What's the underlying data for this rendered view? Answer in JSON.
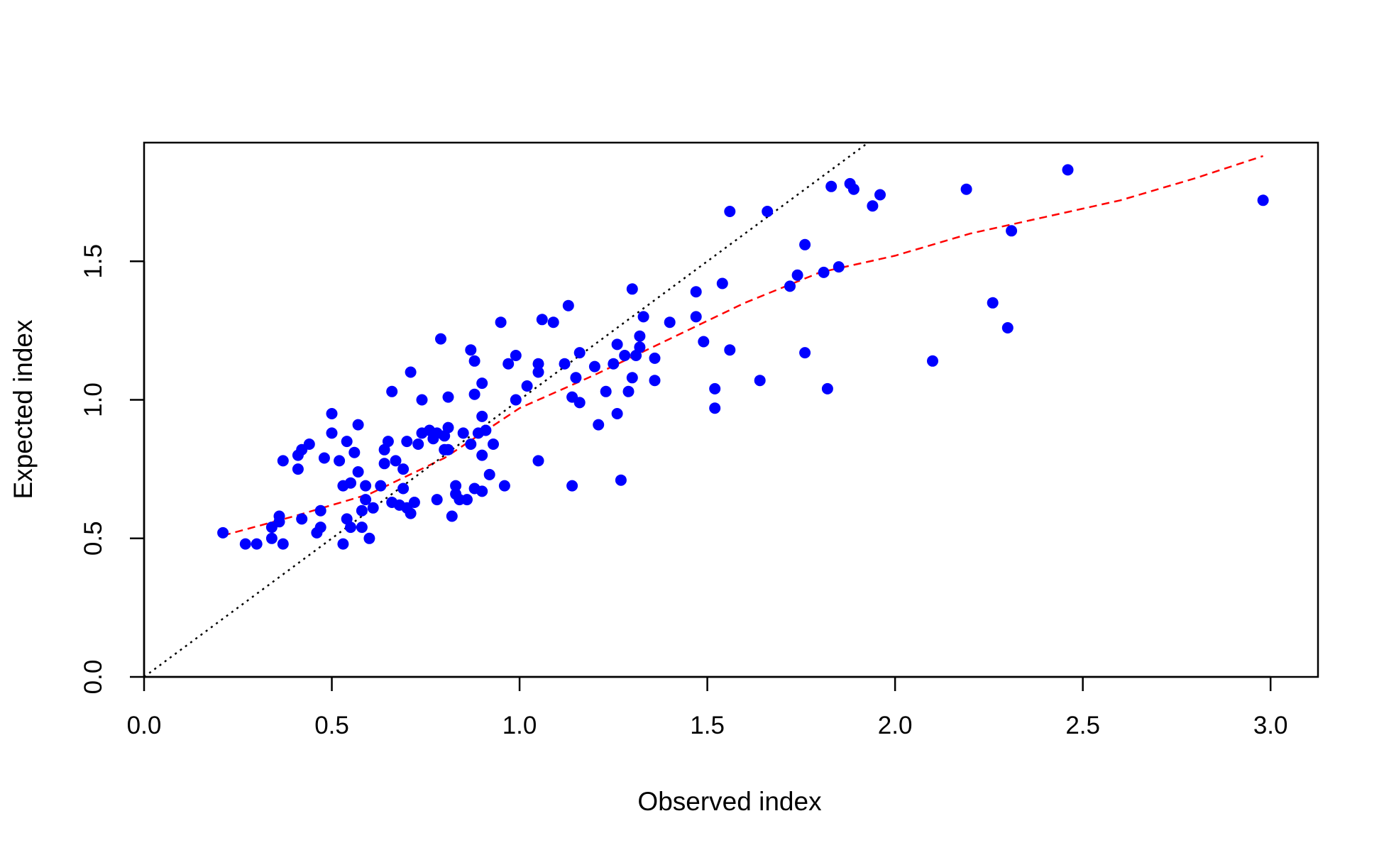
{
  "chart_data": {
    "type": "scatter",
    "title": "",
    "xlabel": "Observed index",
    "ylabel": "Expected index",
    "xlim": [
      0.0,
      3.1263
    ],
    "ylim": [
      0.0,
      1.9283
    ],
    "x_ticks": [
      "0.0",
      "0.5",
      "1.0",
      "1.5",
      "2.0",
      "2.5",
      "3.0"
    ],
    "y_ticks": [
      "0.0",
      "0.5",
      "1.0",
      "1.5"
    ],
    "grid": false,
    "colors": {
      "points": "#0000ff",
      "fit_line": "#ff0000",
      "identity_line": "#000000",
      "axes": "#000000"
    },
    "series": [
      {
        "kind": "points",
        "points": [
          [
            0.21,
            0.52
          ],
          [
            0.27,
            0.48
          ],
          [
            0.3,
            0.48
          ],
          [
            0.34,
            0.54
          ],
          [
            0.34,
            0.5
          ],
          [
            0.36,
            0.58
          ],
          [
            0.36,
            0.56
          ],
          [
            0.37,
            0.48
          ],
          [
            0.37,
            0.78
          ],
          [
            0.41,
            0.8
          ],
          [
            0.41,
            0.75
          ],
          [
            0.42,
            0.82
          ],
          [
            0.42,
            0.57
          ],
          [
            0.44,
            0.84
          ],
          [
            0.46,
            0.52
          ],
          [
            0.47,
            0.6
          ],
          [
            0.47,
            0.54
          ],
          [
            0.48,
            0.79
          ],
          [
            0.5,
            0.95
          ],
          [
            0.5,
            0.88
          ],
          [
            0.52,
            0.78
          ],
          [
            0.53,
            0.69
          ],
          [
            0.53,
            0.48
          ],
          [
            0.54,
            0.85
          ],
          [
            0.54,
            0.57
          ],
          [
            0.55,
            0.7
          ],
          [
            0.55,
            0.54
          ],
          [
            0.56,
            0.81
          ],
          [
            0.57,
            0.74
          ],
          [
            0.57,
            0.91
          ],
          [
            0.58,
            0.6
          ],
          [
            0.58,
            0.54
          ],
          [
            0.59,
            0.69
          ],
          [
            0.59,
            0.64
          ],
          [
            0.6,
            0.5
          ],
          [
            0.61,
            0.61
          ],
          [
            0.63,
            0.69
          ],
          [
            0.64,
            0.82
          ],
          [
            0.64,
            0.77
          ],
          [
            0.65,
            0.85
          ],
          [
            0.66,
            1.03
          ],
          [
            0.66,
            0.63
          ],
          [
            0.67,
            0.78
          ],
          [
            0.68,
            0.62
          ],
          [
            0.69,
            0.75
          ],
          [
            0.69,
            0.68
          ],
          [
            0.7,
            0.85
          ],
          [
            0.7,
            0.61
          ],
          [
            0.71,
            1.1
          ],
          [
            0.71,
            0.59
          ],
          [
            0.72,
            0.63
          ],
          [
            0.73,
            0.84
          ],
          [
            0.74,
            1.0
          ],
          [
            0.74,
            0.88
          ],
          [
            0.76,
            0.89
          ],
          [
            0.77,
            0.86
          ],
          [
            0.78,
            0.88
          ],
          [
            0.78,
            0.64
          ],
          [
            0.79,
            1.22
          ],
          [
            0.8,
            0.87
          ],
          [
            0.8,
            0.82
          ],
          [
            0.81,
            0.9
          ],
          [
            0.81,
            1.01
          ],
          [
            0.81,
            0.82
          ],
          [
            0.82,
            0.58
          ],
          [
            0.83,
            0.66
          ],
          [
            0.83,
            0.69
          ],
          [
            0.84,
            0.64
          ],
          [
            0.85,
            0.88
          ],
          [
            0.86,
            0.64
          ],
          [
            0.87,
            1.18
          ],
          [
            0.87,
            0.84
          ],
          [
            0.88,
            1.14
          ],
          [
            0.88,
            0.68
          ],
          [
            0.88,
            1.02
          ],
          [
            0.89,
            0.88
          ],
          [
            0.9,
            1.06
          ],
          [
            0.9,
            0.94
          ],
          [
            0.9,
            0.8
          ],
          [
            0.9,
            0.67
          ],
          [
            0.91,
            0.89
          ],
          [
            0.92,
            0.73
          ],
          [
            0.93,
            0.84
          ],
          [
            0.95,
            1.28
          ],
          [
            0.96,
            0.69
          ],
          [
            0.97,
            1.13
          ],
          [
            0.99,
            1.16
          ],
          [
            0.99,
            1.0
          ],
          [
            1.02,
            1.05
          ],
          [
            1.05,
            1.13
          ],
          [
            1.05,
            1.1
          ],
          [
            1.05,
            0.78
          ],
          [
            1.06,
            1.29
          ],
          [
            1.09,
            1.28
          ],
          [
            1.12,
            1.13
          ],
          [
            1.13,
            1.34
          ],
          [
            1.14,
            1.01
          ],
          [
            1.14,
            0.69
          ],
          [
            1.15,
            1.08
          ],
          [
            1.16,
            1.17
          ],
          [
            1.16,
            0.99
          ],
          [
            1.2,
            1.12
          ],
          [
            1.21,
            0.91
          ],
          [
            1.23,
            1.03
          ],
          [
            1.25,
            1.13
          ],
          [
            1.26,
            1.2
          ],
          [
            1.26,
            0.95
          ],
          [
            1.27,
            0.71
          ],
          [
            1.28,
            1.16
          ],
          [
            1.29,
            1.03
          ],
          [
            1.3,
            1.08
          ],
          [
            1.3,
            1.4
          ],
          [
            1.31,
            1.16
          ],
          [
            1.32,
            1.19
          ],
          [
            1.32,
            1.23
          ],
          [
            1.33,
            1.3
          ],
          [
            1.36,
            1.15
          ],
          [
            1.36,
            1.07
          ],
          [
            1.4,
            1.28
          ],
          [
            1.47,
            1.39
          ],
          [
            1.47,
            1.3
          ],
          [
            1.49,
            1.21
          ],
          [
            1.52,
            1.04
          ],
          [
            1.52,
            0.97
          ],
          [
            1.54,
            1.42
          ],
          [
            1.56,
            1.18
          ],
          [
            1.56,
            1.68
          ],
          [
            1.64,
            1.07
          ],
          [
            1.66,
            1.68
          ],
          [
            1.72,
            1.41
          ],
          [
            1.74,
            1.45
          ],
          [
            1.76,
            1.56
          ],
          [
            1.76,
            1.17
          ],
          [
            1.81,
            1.46
          ],
          [
            1.82,
            1.04
          ],
          [
            1.83,
            1.77
          ],
          [
            1.85,
            1.48
          ],
          [
            1.88,
            1.78
          ],
          [
            1.89,
            1.76
          ],
          [
            1.94,
            1.7
          ],
          [
            1.96,
            1.74
          ],
          [
            2.1,
            1.14
          ],
          [
            2.19,
            1.76
          ],
          [
            2.26,
            1.35
          ],
          [
            2.3,
            1.26
          ],
          [
            2.31,
            1.61
          ],
          [
            2.46,
            1.83
          ],
          [
            2.98,
            1.72
          ]
        ]
      },
      {
        "kind": "fit-line",
        "style": "dashed",
        "points": [
          [
            0.21,
            0.51
          ],
          [
            0.4,
            0.58
          ],
          [
            0.6,
            0.66
          ],
          [
            0.8,
            0.79
          ],
          [
            1.0,
            0.97
          ],
          [
            1.2,
            1.09
          ],
          [
            1.4,
            1.22
          ],
          [
            1.6,
            1.35
          ],
          [
            1.8,
            1.46
          ],
          [
            2.0,
            1.52
          ],
          [
            2.2,
            1.6
          ],
          [
            2.4,
            1.66
          ],
          [
            2.6,
            1.72
          ],
          [
            2.8,
            1.8
          ],
          [
            2.98,
            1.88
          ]
        ]
      },
      {
        "kind": "identity-line",
        "style": "dotted",
        "points": [
          [
            0.0,
            0.0
          ],
          [
            1.9283,
            1.9283
          ]
        ]
      }
    ]
  }
}
